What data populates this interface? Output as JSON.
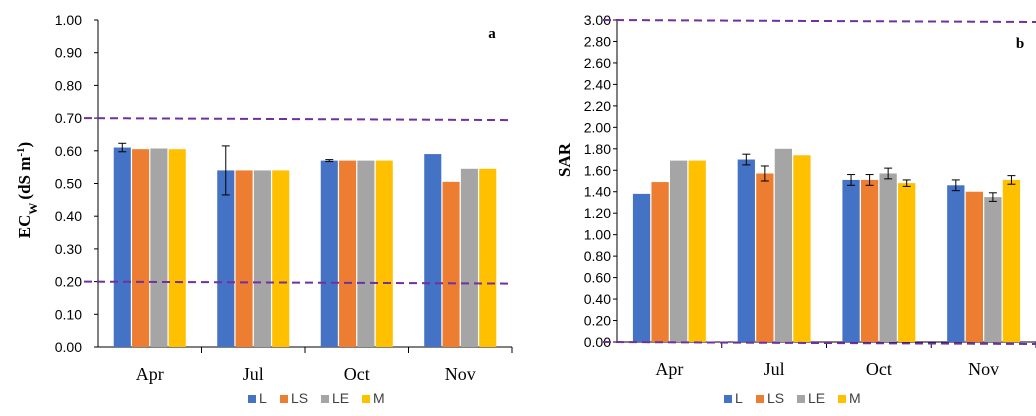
{
  "chart_data": [
    {
      "type": "bar",
      "panel_label": "a",
      "ylabel_main": "EC",
      "ylabel_sub": "W",
      "ylabel_units": "(dS m",
      "ylabel_sup": "-1",
      "ylabel_close": ")",
      "categories": [
        "Apr",
        "Jul",
        "Oct",
        "Nov"
      ],
      "series": [
        {
          "name": "L",
          "color": "#4472C4",
          "values": [
            0.61,
            0.54,
            0.57,
            0.59
          ],
          "errors": [
            0.013,
            0.075,
            0.003,
            0.0
          ]
        },
        {
          "name": "LS",
          "color": "#ED7D31",
          "values": [
            0.605,
            0.54,
            0.57,
            0.505
          ],
          "errors": [
            0.0,
            0.0,
            0.0,
            0.0
          ]
        },
        {
          "name": "LE",
          "color": "#A5A5A5",
          "values": [
            0.607,
            0.54,
            0.57,
            0.545
          ],
          "errors": [
            0.0,
            0.0,
            0.0,
            0.0
          ]
        },
        {
          "name": "M",
          "color": "#FFC000",
          "values": [
            0.605,
            0.54,
            0.57,
            0.545
          ],
          "errors": [
            0.0,
            0.0,
            0.0,
            0.0
          ]
        }
      ],
      "ylim": [
        0,
        1.0
      ],
      "yticks": [
        "0.00",
        "0.10",
        "0.20",
        "0.30",
        "0.40",
        "0.50",
        "0.60",
        "0.70",
        "0.80",
        "0.90",
        "1.00"
      ],
      "reference_lines": [
        0.7,
        0.2
      ],
      "reference_color": "#7030A0",
      "grid": false,
      "legend_position": "bottom"
    },
    {
      "type": "bar",
      "panel_label": "b",
      "ylabel": "SAR",
      "categories": [
        "Apr",
        "Jul",
        "Oct",
        "Nov"
      ],
      "series": [
        {
          "name": "L",
          "color": "#4472C4",
          "values": [
            1.38,
            1.7,
            1.51,
            1.46
          ],
          "errors": [
            0.0,
            0.05,
            0.05,
            0.05
          ]
        },
        {
          "name": "LS",
          "color": "#ED7D31",
          "values": [
            1.49,
            1.57,
            1.51,
            1.4
          ],
          "errors": [
            0.0,
            0.07,
            0.05,
            0.0
          ]
        },
        {
          "name": "LE",
          "color": "#A5A5A5",
          "values": [
            1.69,
            1.8,
            1.57,
            1.35
          ],
          "errors": [
            0.0,
            0.0,
            0.05,
            0.04
          ]
        },
        {
          "name": "M",
          "color": "#FFC000",
          "values": [
            1.69,
            1.74,
            1.48,
            1.51
          ],
          "errors": [
            0.0,
            0.0,
            0.03,
            0.04
          ]
        }
      ],
      "ylim": [
        0,
        3.0
      ],
      "yticks": [
        "0.00",
        "0.20",
        "0.40",
        "0.60",
        "0.80",
        "1.00",
        "1.20",
        "1.40",
        "1.60",
        "1.80",
        "2.00",
        "2.20",
        "2.40",
        "2.60",
        "2.80",
        "3.00"
      ],
      "reference_lines": [
        3.0,
        0.0
      ],
      "reference_color": "#7030A0",
      "grid": false,
      "legend_position": "bottom"
    }
  ]
}
